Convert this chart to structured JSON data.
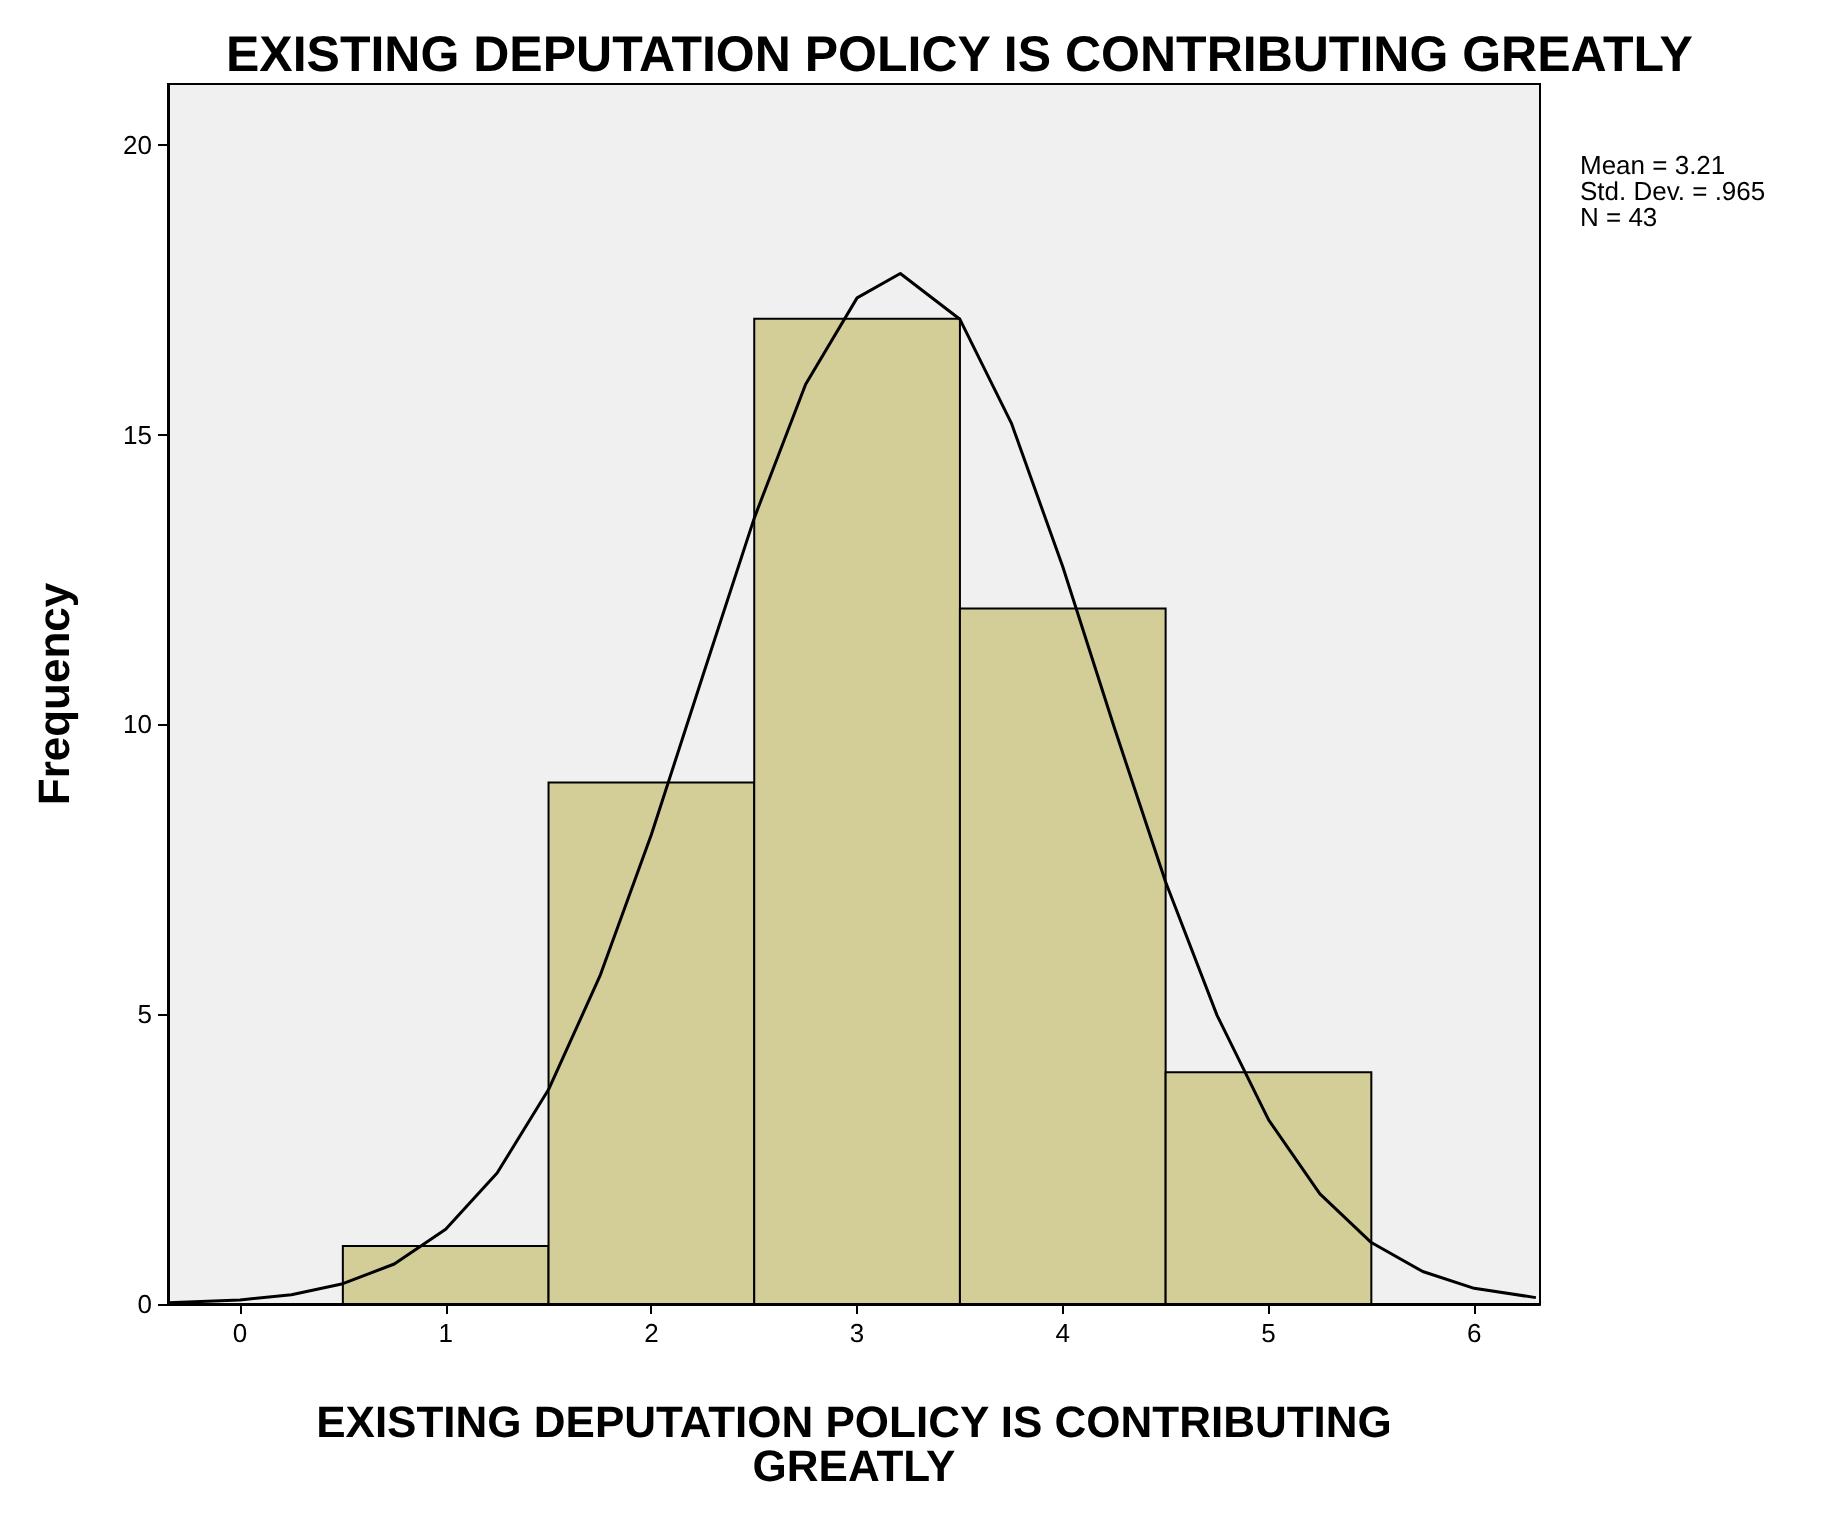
{
  "chart_data": {
    "type": "histogram",
    "title": "EXISTING DEPUTATION POLICY IS CONTRIBUTING GREATLY",
    "xlabel": "EXISTING DEPUTATION POLICY IS CONTRIBUTING GREATLY",
    "ylabel": "Frequency",
    "bins": [
      0.5,
      1.5,
      2.5,
      3.5,
      4.5,
      5.5
    ],
    "values": [
      1,
      9,
      17,
      12,
      4
    ],
    "color": "#d3cd98",
    "series": [
      {
        "type": "line",
        "color": "#000000",
        "x": [
          -0.35,
          0,
          0.25,
          0.5,
          0.75,
          1,
          1.25,
          1.5,
          1.75,
          2,
          2.25,
          2.5,
          2.75,
          3,
          3.21,
          3.5,
          3.75,
          4,
          4.25,
          4.5,
          4.75,
          5,
          5.25,
          5.5,
          5.75,
          6,
          6.3
        ],
        "values": [
          0.02,
          0.07,
          0.16,
          0.35,
          0.69,
          1.29,
          2.26,
          3.7,
          5.66,
          8.1,
          10.84,
          13.56,
          15.87,
          17.36,
          17.78,
          16.99,
          15.2,
          12.72,
          9.95,
          7.28,
          4.98,
          3.18,
          1.9,
          1.06,
          0.56,
          0.27,
          0.11
        ]
      }
    ],
    "annotations": [
      "Mean = 3.21",
      "Std. Dev. = .965",
      "N = 43"
    ],
    "xlim": [
      -0.35,
      6.32
    ],
    "xticks": [
      0,
      1,
      2,
      3,
      4,
      5,
      6
    ],
    "ylim": [
      0,
      21.05
    ],
    "yticks": [
      0,
      5,
      10,
      15,
      20
    ],
    "grid": false,
    "marker": "none",
    "line_style": "solid"
  }
}
